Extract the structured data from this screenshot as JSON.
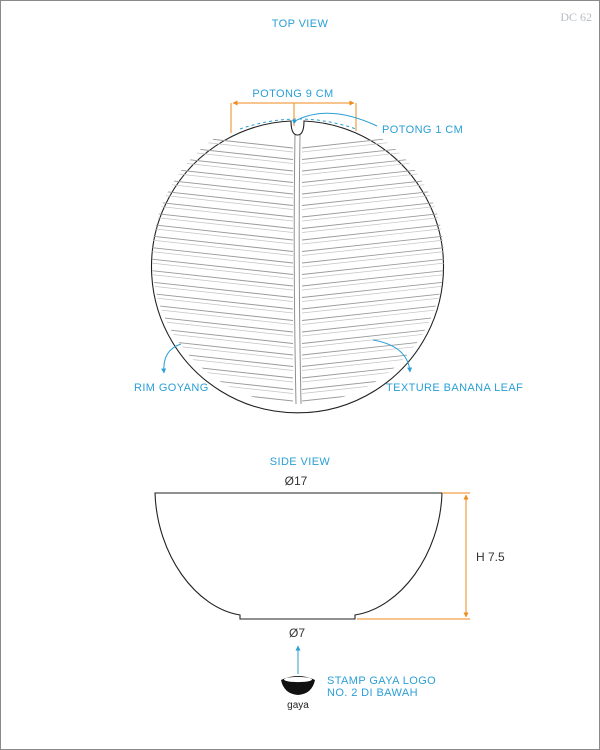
{
  "sheet": {
    "code": "DC 62",
    "top_view": {
      "title": "TOP VIEW",
      "cut_width_label": "POTONG 9 CM",
      "cut_depth_label": "POTONG 1 CM",
      "rim_label": "RIM GOYANG",
      "texture_label": "TEXTURE BANANA LEAF"
    },
    "side_view": {
      "title": "SIDE VIEW",
      "top_diameter": "Ø17",
      "height": "H 7.5",
      "base_diameter": "Ø7",
      "stamp_line1": "STAMP GAYA LOGO",
      "stamp_line2": "NO. 2 DI BAWAH",
      "logo_text": "gaya"
    },
    "colors": {
      "label": "#2a9fd6",
      "dimension_line": "#f08a1c",
      "outline": "#222222",
      "leaf_vein": "#9a9a9a"
    }
  }
}
